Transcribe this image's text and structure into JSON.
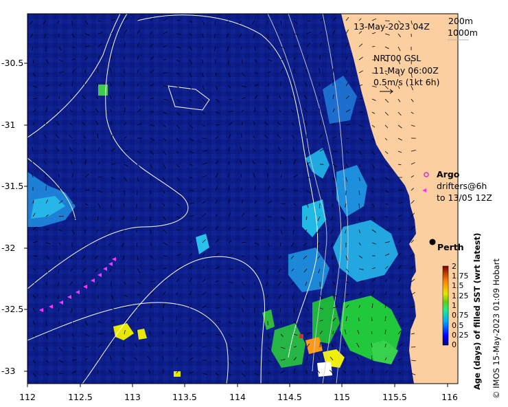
{
  "map": {
    "date_label": "13-May-2023 04Z",
    "isobath_labels": [
      "200m",
      "1000m"
    ],
    "model_label": "NRT00 GSL",
    "model_time": "11-May 06:00Z",
    "vector_scale_label": "0.5m/s (1kt 6h)",
    "legend": {
      "argo": "Argo",
      "drifters_line1": "drifters@6h",
      "drifters_line2": "to 13/05 12Z"
    },
    "city": "Perth",
    "colorbar_title": "Age (days) of filled SST (wrt latest)",
    "credit": "© IMOS 15-May-2023 01:09 Hobart",
    "colorbar_ticks": [
      "2",
      "1.75",
      "1.5",
      "1.25",
      "1",
      "0.75",
      "0.5",
      "0.25",
      "0"
    ],
    "x_ticks": [
      "112",
      "112.5",
      "113",
      "113.5",
      "114",
      "114.5",
      "115",
      "115.5",
      "116"
    ],
    "y_ticks": [
      "-30.5",
      "-31",
      "-31.5",
      "-32",
      "-32.5",
      "-33"
    ],
    "colors": {
      "ocean": "#0d1e8a",
      "land": "#fbcf9f",
      "drifter": "#ff33ff",
      "argo": "#cc33cc"
    }
  }
}
